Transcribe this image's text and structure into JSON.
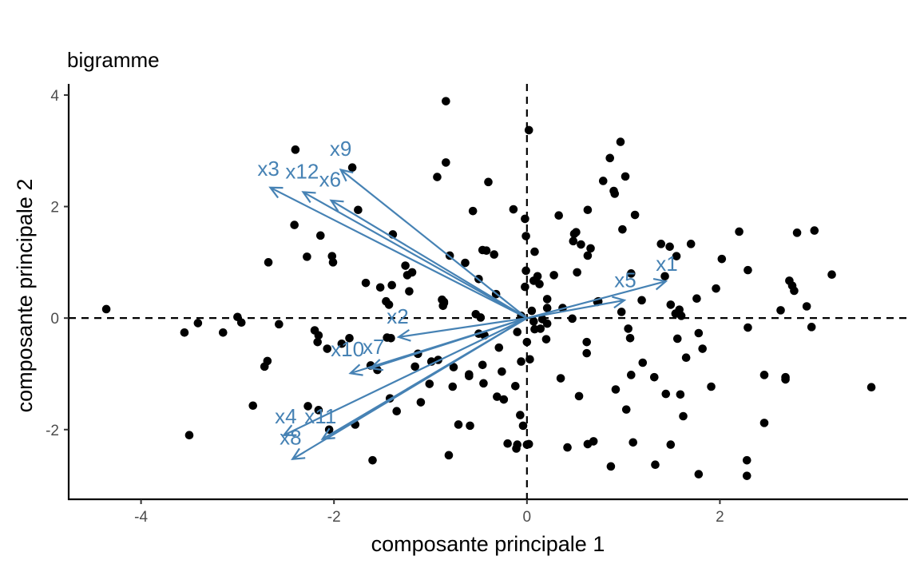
{
  "chart_data": {
    "type": "scatter",
    "title": "bigramme",
    "xlabel": "composante principale 1",
    "ylabel": "composante principale 2",
    "xlim": [
      -4.75,
      3.95
    ],
    "ylim": [
      -3.25,
      4.2
    ],
    "x_ticks": [
      -4,
      -2,
      0,
      2
    ],
    "y_ticks": [
      -2,
      0,
      2,
      4
    ],
    "x_tick_labels": [
      "-4",
      "-2",
      "0",
      "2"
    ],
    "y_tick_labels": [
      "-2",
      "0",
      "2",
      "4"
    ],
    "reference_lines": {
      "x": 0,
      "y": 0,
      "style": "dashed"
    },
    "grid": false,
    "colors": {
      "points": "#000000",
      "arrows": "#4682b4",
      "axis": "#000000",
      "tick_label": "#4d4d4d"
    },
    "points": [
      [
        -4.36,
        0.16
      ],
      [
        -3.55,
        -0.26
      ],
      [
        -3.5,
        -2.1
      ],
      [
        -3.41,
        -0.09
      ],
      [
        -3.15,
        -0.26
      ],
      [
        -3.0,
        0.02
      ],
      [
        -2.96,
        -0.08
      ],
      [
        -2.84,
        -1.57
      ],
      [
        -2.72,
        -0.87
      ],
      [
        -2.69,
        -0.77
      ],
      [
        -2.68,
        1.0
      ],
      [
        -2.57,
        -0.11
      ],
      [
        -2.4,
        3.02
      ],
      [
        -2.41,
        1.67
      ],
      [
        -2.28,
        1.1
      ],
      [
        -2.27,
        -1.58
      ],
      [
        -2.2,
        -0.22
      ],
      [
        -2.17,
        -0.43
      ],
      [
        -2.16,
        -0.31
      ],
      [
        -2.16,
        -1.65
      ],
      [
        -2.14,
        1.48
      ],
      [
        -2.07,
        -0.55
      ],
      [
        -2.05,
        -2.0
      ],
      [
        -2.02,
        1.11
      ],
      [
        -2.01,
        1.0
      ],
      [
        -1.92,
        -0.46
      ],
      [
        -1.84,
        -0.36
      ],
      [
        -1.78,
        -1.91
      ],
      [
        -1.81,
        2.7
      ],
      [
        -1.75,
        1.94
      ],
      [
        -1.67,
        0.63
      ],
      [
        -1.62,
        -0.85
      ],
      [
        -1.6,
        -2.55
      ],
      [
        -1.55,
        -0.93
      ],
      [
        -1.52,
        0.55
      ],
      [
        -1.46,
        0.3
      ],
      [
        -1.43,
        0.24
      ],
      [
        -1.4,
        0.59
      ],
      [
        -1.39,
        1.5
      ],
      [
        -1.45,
        -0.35
      ],
      [
        -1.41,
        -0.36
      ],
      [
        -1.42,
        -1.44
      ],
      [
        -1.35,
        -1.67
      ],
      [
        -1.26,
        0.94
      ],
      [
        -1.24,
        0.77
      ],
      [
        -1.22,
        0.48
      ],
      [
        -1.19,
        0.82
      ],
      [
        -1.16,
        -0.87
      ],
      [
        -1.13,
        -0.64
      ],
      [
        -1.1,
        -1.51
      ],
      [
        -1.01,
        -1.18
      ],
      [
        -0.99,
        -0.78
      ],
      [
        -0.92,
        -0.75
      ],
      [
        -0.93,
        2.53
      ],
      [
        -0.88,
        0.33
      ],
      [
        -0.87,
        0.22
      ],
      [
        -0.86,
        0.27
      ],
      [
        -0.86,
        0.29
      ],
      [
        -0.84,
        2.79
      ],
      [
        -0.84,
        3.89
      ],
      [
        -0.8,
        1.12
      ],
      [
        -0.77,
        -1.23
      ],
      [
        -0.81,
        -2.46
      ],
      [
        -0.76,
        -0.88
      ],
      [
        -0.71,
        -1.91
      ],
      [
        -0.64,
        0.99
      ],
      [
        -0.6,
        -1.01
      ],
      [
        -0.59,
        -1.93
      ],
      [
        -0.6,
        -1.04
      ],
      [
        -0.56,
        1.92
      ],
      [
        -0.53,
        0.07
      ],
      [
        -0.5,
        -0.28
      ],
      [
        -0.5,
        0.7
      ],
      [
        -0.48,
        0.01
      ],
      [
        -0.46,
        1.22
      ],
      [
        -0.44,
        -0.31
      ],
      [
        -0.46,
        -0.84
      ],
      [
        -0.45,
        -1.17
      ],
      [
        -0.42,
        1.21
      ],
      [
        -0.4,
        2.44
      ],
      [
        -0.34,
        1.14
      ],
      [
        -0.32,
        0.43
      ],
      [
        -0.31,
        -1.41
      ],
      [
        -0.29,
        -0.53
      ],
      [
        -0.26,
        -0.96
      ],
      [
        -0.24,
        -1.46
      ],
      [
        -0.2,
        -2.25
      ],
      [
        -0.12,
        -1.22
      ],
      [
        -0.11,
        -2.34
      ],
      [
        -0.14,
        1.95
      ],
      [
        -0.1,
        -0.25
      ],
      [
        -0.06,
        0.04
      ],
      [
        -0.06,
        -0.78
      ],
      [
        -0.02,
        0.56
      ],
      [
        -0.01,
        1.47
      ],
      [
        -0.02,
        1.78
      ],
      [
        -0.01,
        0.85
      ],
      [
        -0.07,
        -1.74
      ],
      [
        -0.1,
        -2.27
      ],
      [
        -0.04,
        -1.93
      ],
      [
        0.0,
        -0.43
      ],
      [
        0.02,
        3.37
      ],
      [
        0.0,
        -2.27
      ],
      [
        0.02,
        -2.26
      ],
      [
        0.03,
        -0.74
      ],
      [
        0.05,
        0.13
      ],
      [
        0.07,
        0.67
      ],
      [
        0.07,
        -0.06
      ],
      [
        0.08,
        -0.2
      ],
      [
        0.08,
        1.19
      ],
      [
        0.11,
        0.75
      ],
      [
        0.13,
        0.61
      ],
      [
        0.14,
        -0.19
      ],
      [
        0.16,
        -0.02
      ],
      [
        0.2,
        -0.38
      ],
      [
        0.21,
        -0.1
      ],
      [
        0.21,
        0.18
      ],
      [
        0.21,
        0.34
      ],
      [
        0.28,
        0.77
      ],
      [
        0.35,
        -1.08
      ],
      [
        0.33,
        1.84
      ],
      [
        0.37,
        0.18
      ],
      [
        0.42,
        -2.32
      ],
      [
        0.47,
        -0.01
      ],
      [
        0.48,
        1.38
      ],
      [
        0.49,
        1.51
      ],
      [
        0.52,
        0.82
      ],
      [
        0.51,
        1.54
      ],
      [
        0.54,
        -1.4
      ],
      [
        0.56,
        1.32
      ],
      [
        0.63,
        1.12
      ],
      [
        0.62,
        -0.43
      ],
      [
        0.62,
        -0.63
      ],
      [
        0.63,
        1.94
      ],
      [
        0.63,
        -2.26
      ],
      [
        0.66,
        1.25
      ],
      [
        0.69,
        -2.21
      ],
      [
        0.73,
        0.29
      ],
      [
        0.74,
        0.3
      ],
      [
        0.79,
        2.46
      ],
      [
        0.86,
        2.87
      ],
      [
        0.87,
        -2.66
      ],
      [
        0.9,
        2.28
      ],
      [
        0.91,
        2.23
      ],
      [
        0.92,
        -1.28
      ],
      [
        0.97,
        3.16
      ],
      [
        0.98,
        0.11
      ],
      [
        0.99,
        1.59
      ],
      [
        1.02,
        2.54
      ],
      [
        1.03,
        -1.64
      ],
      [
        1.05,
        -0.19
      ],
      [
        1.07,
        -0.36
      ],
      [
        1.08,
        0.8
      ],
      [
        1.08,
        -1.02
      ],
      [
        1.1,
        -2.23
      ],
      [
        1.12,
        1.85
      ],
      [
        1.19,
        0.32
      ],
      [
        1.2,
        -0.8
      ],
      [
        1.32,
        -1.06
      ],
      [
        1.33,
        -2.63
      ],
      [
        1.39,
        1.33
      ],
      [
        1.43,
        0.75
      ],
      [
        1.44,
        -1.36
      ],
      [
        1.49,
        0.24
      ],
      [
        1.48,
        1.28
      ],
      [
        1.49,
        -2.27
      ],
      [
        1.55,
        1.11
      ],
      [
        1.54,
        0.08
      ],
      [
        1.56,
        -0.37
      ],
      [
        1.59,
        -1.37
      ],
      [
        1.58,
        0.15
      ],
      [
        1.62,
        -1.76
      ],
      [
        1.6,
        0.04
      ],
      [
        1.65,
        -0.71
      ],
      [
        1.7,
        1.33
      ],
      [
        1.76,
        0.35
      ],
      [
        1.78,
        -2.8
      ],
      [
        1.78,
        -0.27
      ],
      [
        1.82,
        -0.55
      ],
      [
        1.91,
        -1.23
      ],
      [
        1.96,
        0.53
      ],
      [
        2.02,
        1.06
      ],
      [
        2.2,
        1.55
      ],
      [
        2.28,
        -2.55
      ],
      [
        2.28,
        -2.83
      ],
      [
        2.29,
        0.86
      ],
      [
        2.29,
        -0.17
      ],
      [
        2.46,
        -1.88
      ],
      [
        2.46,
        -1.02
      ],
      [
        2.63,
        0.14
      ],
      [
        2.68,
        -1.06
      ],
      [
        2.68,
        -1.1
      ],
      [
        2.72,
        0.67
      ],
      [
        2.75,
        0.58
      ],
      [
        2.77,
        0.49
      ],
      [
        2.8,
        1.53
      ],
      [
        2.9,
        0.21
      ],
      [
        2.95,
        -0.16
      ],
      [
        2.98,
        1.57
      ],
      [
        3.16,
        0.78
      ],
      [
        3.57,
        -1.24
      ]
    ],
    "loadings": [
      {
        "label": "x1",
        "x": 1.44,
        "y": 0.66
      },
      {
        "label": "x5",
        "x": 1.01,
        "y": 0.32
      },
      {
        "label": "x2",
        "x": -1.33,
        "y": -0.34
      },
      {
        "label": "x7",
        "x": -1.62,
        "y": -0.9
      },
      {
        "label": "x10",
        "x": -1.83,
        "y": -0.99
      },
      {
        "label": "x4",
        "x": -2.52,
        "y": -2.1
      },
      {
        "label": "x11",
        "x": -2.12,
        "y": -2.17
      },
      {
        "label": "x8",
        "x": -2.43,
        "y": -2.53
      },
      {
        "label": "x3",
        "x": -2.66,
        "y": 2.34
      },
      {
        "label": "x12",
        "x": -2.32,
        "y": 2.26
      },
      {
        "label": "x6",
        "x": -2.03,
        "y": 2.11
      },
      {
        "label": "x9",
        "x": -1.93,
        "y": 2.66
      }
    ],
    "loading_labels": [
      {
        "label": "x1",
        "x": 1.45,
        "y": 0.98
      },
      {
        "label": "x5",
        "x": 1.02,
        "y": 0.68
      },
      {
        "label": "x2",
        "x": -1.34,
        "y": 0.03
      },
      {
        "label": "x7",
        "x": -1.59,
        "y": -0.51
      },
      {
        "label": "x10",
        "x": -1.86,
        "y": -0.56
      },
      {
        "label": "x4",
        "x": -2.5,
        "y": -1.76
      },
      {
        "label": "x11",
        "x": -2.14,
        "y": -1.76
      },
      {
        "label": "x8",
        "x": -2.45,
        "y": -2.14
      },
      {
        "label": "x3",
        "x": -2.68,
        "y": 2.68
      },
      {
        "label": "x12",
        "x": -2.33,
        "y": 2.63
      },
      {
        "label": "x6",
        "x": -2.04,
        "y": 2.49
      },
      {
        "label": "x9",
        "x": -1.93,
        "y": 3.04
      }
    ]
  }
}
